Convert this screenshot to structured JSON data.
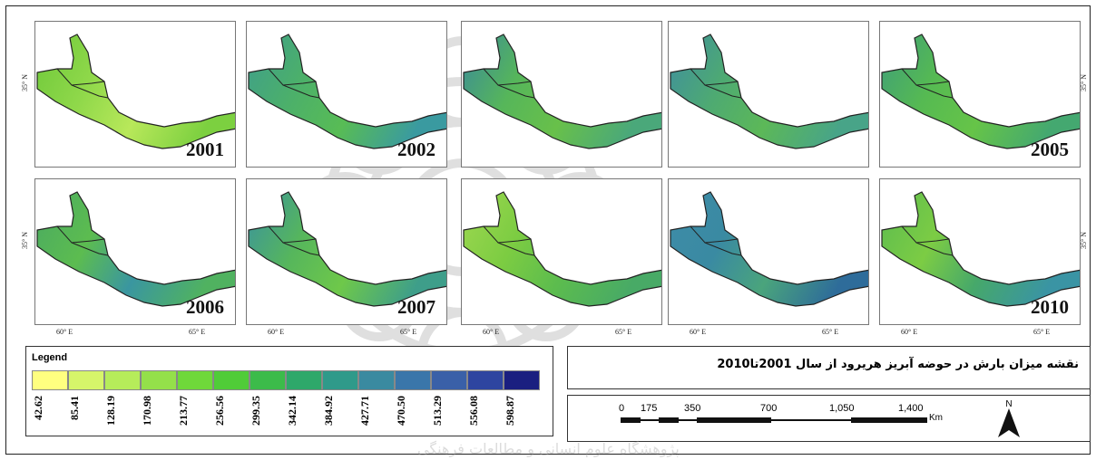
{
  "maps": [
    {
      "year": "2001",
      "show_lon": false,
      "lat_label": "35° N",
      "lat_side": "left",
      "colors": [
        "#6ec83a",
        "#8fd84a",
        "#b8e85a",
        "#7cd040"
      ]
    },
    {
      "year": "2002",
      "show_lon": false,
      "lat_label": "",
      "lat_side": "none",
      "colors": [
        "#3e9e8c",
        "#4cb06a",
        "#58bc55",
        "#3a9aa0"
      ]
    },
    {
      "year": "",
      "show_lon": false,
      "lat_label": "",
      "lat_side": "none",
      "colors": [
        "#3a8a9a",
        "#56b65a",
        "#68c04a",
        "#4aa87a"
      ]
    },
    {
      "year": "",
      "show_lon": false,
      "lat_label": "",
      "lat_side": "none",
      "colors": [
        "#3e8ea0",
        "#4eaa72",
        "#5cb858",
        "#48a488"
      ]
    },
    {
      "year": "2005",
      "show_lon": false,
      "lat_label": "35° N",
      "lat_side": "right",
      "colors": [
        "#3e9e7a",
        "#56ba52",
        "#66c448",
        "#44a870"
      ]
    },
    {
      "year": "2006",
      "show_lon": true,
      "lat_label": "35° N",
      "lat_side": "left",
      "colors": [
        "#4aaa62",
        "#5cbc50",
        "#3a96a0",
        "#50b260"
      ]
    },
    {
      "year": "2007",
      "show_lon": true,
      "lat_label": "",
      "lat_side": "none",
      "colors": [
        "#3a92a0",
        "#56b65c",
        "#6ec84a",
        "#3e9e8a"
      ]
    },
    {
      "year": "",
      "show_lon": true,
      "lat_label": "",
      "lat_side": "none",
      "colors": [
        "#9ed850",
        "#7ccc42",
        "#5cbc4e",
        "#48aa66"
      ]
    },
    {
      "year": "",
      "show_lon": true,
      "lat_label": "",
      "lat_side": "none",
      "colors": [
        "#3e8ca8",
        "#3a8aa2",
        "#4aa47c",
        "#2e6c9a"
      ]
    },
    {
      "year": "2010",
      "show_lon": true,
      "lat_label": "35° N",
      "lat_side": "right",
      "colors": [
        "#5cbc50",
        "#7ccc44",
        "#46a86a",
        "#3a94a4"
      ]
    }
  ],
  "lon_labels": [
    "60° E",
    "65° E"
  ],
  "legend": {
    "title": "Legend",
    "colors": [
      "#ffff80",
      "#d6f56a",
      "#b6ec5a",
      "#94e04a",
      "#6fd83a",
      "#50cc38",
      "#3cbb4a",
      "#2ea86a",
      "#2f9a8a",
      "#3a8aa0",
      "#3a76aa",
      "#3a60a8",
      "#2e45a0",
      "#1a1f80"
    ],
    "labels": [
      "42.62",
      "85.41",
      "128.19",
      "170.98",
      "213.77",
      "256.56",
      "299.35",
      "342.14",
      "384.92",
      "427.71",
      "470.50",
      "513.29",
      "556.08",
      "598.87"
    ]
  },
  "map_title": "نقشه میزان بارش در حوضه آبریز هریرود از سال 2001تا2010",
  "scale": {
    "ticks": [
      "0",
      "175",
      "350",
      "700",
      "1,050",
      "1,400"
    ],
    "unit": "Km"
  },
  "north_label": "N",
  "watermark_text": "پژوهشگاه علوم انسانی و مطالعات فرهنگی"
}
